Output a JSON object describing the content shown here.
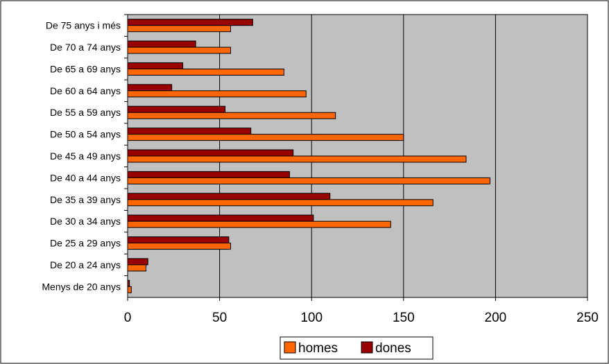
{
  "chart_data": {
    "type": "bar",
    "orientation": "horizontal",
    "categories": [
      "Menys de 20 anys",
      "De 20 a 24 anys",
      "De 25 a 29 anys",
      "De 30 a 34 anys",
      "De 35 a 39 anys",
      "De 40 a 44 anys",
      "De 45 a 49 anys",
      "De 50 a 54 anys",
      "De 55 a 59 anys",
      "De 60 a 64 anys",
      "De 65 a 69 anys",
      "De 70 a 74 anys",
      "De 75 anys i més"
    ],
    "series": [
      {
        "name": "homes",
        "color": "#ff6600",
        "values": [
          2,
          10,
          56,
          143,
          166,
          197,
          184,
          150,
          113,
          97,
          85,
          56,
          56
        ]
      },
      {
        "name": "dones",
        "color": "#990000",
        "values": [
          1,
          11,
          55,
          101,
          110,
          88,
          90,
          67,
          53,
          24,
          30,
          37,
          68
        ]
      }
    ],
    "xlim": [
      0,
      250
    ],
    "xticks": [
      "0",
      "50",
      "100",
      "150",
      "200",
      "250"
    ],
    "xtick_values": [
      0,
      50,
      100,
      150,
      200,
      250
    ],
    "grid": true,
    "legend_position": "bottom-center",
    "plot_background": "#c0c0c0"
  }
}
